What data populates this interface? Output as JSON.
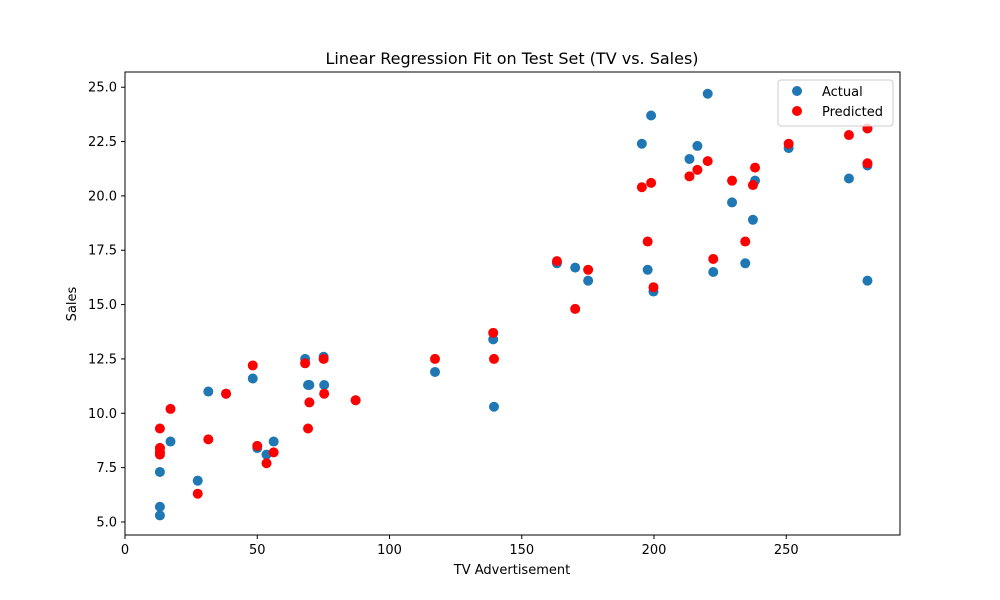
{
  "chart_data": {
    "type": "scatter",
    "title": "Linear Regression Fit on Test Set (TV vs. Sales)",
    "xlabel": "TV Advertisement",
    "ylabel": "Sales",
    "xlim": [
      0,
      293
    ],
    "ylim": [
      4.4,
      25.7
    ],
    "xticks": [
      0,
      50,
      100,
      150,
      200,
      250
    ],
    "xtick_labels": [
      "0",
      "50",
      "100",
      "150",
      "200",
      "250"
    ],
    "yticks": [
      5.0,
      7.5,
      10.0,
      12.5,
      15.0,
      17.5,
      20.0,
      22.5,
      25.0
    ],
    "ytick_labels": [
      "5.0",
      "7.5",
      "10.0",
      "12.5",
      "15.0",
      "17.5",
      "20.0",
      "22.5",
      "25.0"
    ],
    "grid": false,
    "legend": "top-right",
    "series": [
      {
        "name": "Actual",
        "color": "#1f77b4",
        "points": [
          [
            13.2,
            5.3
          ],
          [
            13.2,
            5.7
          ],
          [
            13.2,
            7.3
          ],
          [
            13.2,
            8.4
          ],
          [
            13.2,
            8.2
          ],
          [
            17.2,
            8.7
          ],
          [
            27.5,
            6.9
          ],
          [
            31.5,
            11.0
          ],
          [
            38.2,
            10.9
          ],
          [
            48.3,
            11.6
          ],
          [
            50.0,
            8.4
          ],
          [
            53.5,
            8.1
          ],
          [
            56.2,
            8.7
          ],
          [
            68.1,
            12.5
          ],
          [
            69.2,
            11.3
          ],
          [
            69.7,
            11.3
          ],
          [
            75.1,
            12.6
          ],
          [
            75.3,
            11.3
          ],
          [
            87.2,
            10.6
          ],
          [
            117.2,
            11.9
          ],
          [
            139.2,
            13.4
          ],
          [
            139.5,
            10.3
          ],
          [
            163.3,
            16.9
          ],
          [
            170.2,
            16.7
          ],
          [
            175.1,
            16.1
          ],
          [
            195.4,
            22.4
          ],
          [
            197.6,
            16.6
          ],
          [
            198.9,
            23.7
          ],
          [
            199.8,
            15.6
          ],
          [
            213.4,
            21.7
          ],
          [
            216.4,
            22.3
          ],
          [
            220.3,
            24.7
          ],
          [
            222.4,
            16.5
          ],
          [
            229.5,
            19.7
          ],
          [
            234.5,
            16.9
          ],
          [
            237.4,
            18.9
          ],
          [
            238.2,
            20.7
          ],
          [
            250.9,
            22.2
          ],
          [
            273.7,
            20.8
          ],
          [
            280.7,
            16.1
          ],
          [
            280.7,
            21.4
          ]
        ]
      },
      {
        "name": "Predicted",
        "color": "#ff0000",
        "points": [
          [
            13.2,
            9.3
          ],
          [
            13.2,
            8.4
          ],
          [
            13.2,
            8.2
          ],
          [
            13.2,
            8.1
          ],
          [
            17.2,
            10.2
          ],
          [
            27.5,
            6.3
          ],
          [
            31.5,
            8.8
          ],
          [
            38.2,
            10.9
          ],
          [
            48.3,
            12.2
          ],
          [
            50.0,
            8.5
          ],
          [
            53.5,
            7.7
          ],
          [
            56.2,
            8.2
          ],
          [
            68.1,
            12.3
          ],
          [
            69.2,
            9.3
          ],
          [
            69.7,
            10.5
          ],
          [
            75.1,
            12.5
          ],
          [
            75.3,
            10.9
          ],
          [
            87.2,
            10.6
          ],
          [
            117.2,
            12.5
          ],
          [
            139.2,
            13.7
          ],
          [
            139.5,
            12.5
          ],
          [
            163.3,
            17.0
          ],
          [
            170.2,
            14.8
          ],
          [
            175.1,
            16.6
          ],
          [
            195.4,
            20.4
          ],
          [
            197.6,
            17.9
          ],
          [
            198.9,
            20.6
          ],
          [
            199.8,
            15.8
          ],
          [
            213.4,
            20.9
          ],
          [
            216.4,
            21.2
          ],
          [
            220.3,
            21.6
          ],
          [
            222.4,
            17.1
          ],
          [
            229.5,
            20.7
          ],
          [
            234.5,
            17.9
          ],
          [
            237.4,
            20.5
          ],
          [
            238.2,
            21.3
          ],
          [
            250.9,
            22.4
          ],
          [
            273.7,
            22.8
          ],
          [
            280.7,
            23.1
          ],
          [
            280.7,
            21.5
          ]
        ]
      }
    ]
  }
}
